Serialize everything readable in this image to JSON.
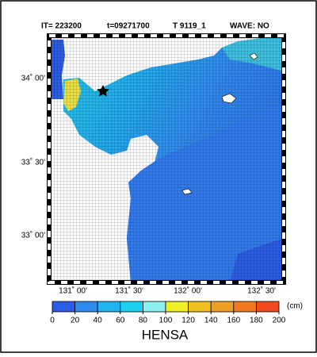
{
  "header": {
    "iteration": "IT=  223200",
    "time": "t=09271700",
    "typhoon": "T 9119_1",
    "wave": "WAVE: NO"
  },
  "latitude_labels": [
    "34˚ 00'",
    "33˚ 30'",
    "33˚ 00'"
  ],
  "longitude_labels": [
    "131˚ 00'",
    "131˚ 30'",
    "132˚ 00'",
    "132˚ 30'"
  ],
  "colorbar": {
    "title": "HENSA",
    "unit": "(cm)",
    "ticks": [
      0,
      20,
      40,
      60,
      80,
      100,
      120,
      140,
      160,
      180,
      200
    ],
    "colors": [
      "#2a5ce6",
      "#2f88f0",
      "#1fb4f0",
      "#1cd0f0",
      "#8ff0f0",
      "#f0f028",
      "#f0c020",
      "#f0a020",
      "#f07820",
      "#f04a1e"
    ]
  }
}
